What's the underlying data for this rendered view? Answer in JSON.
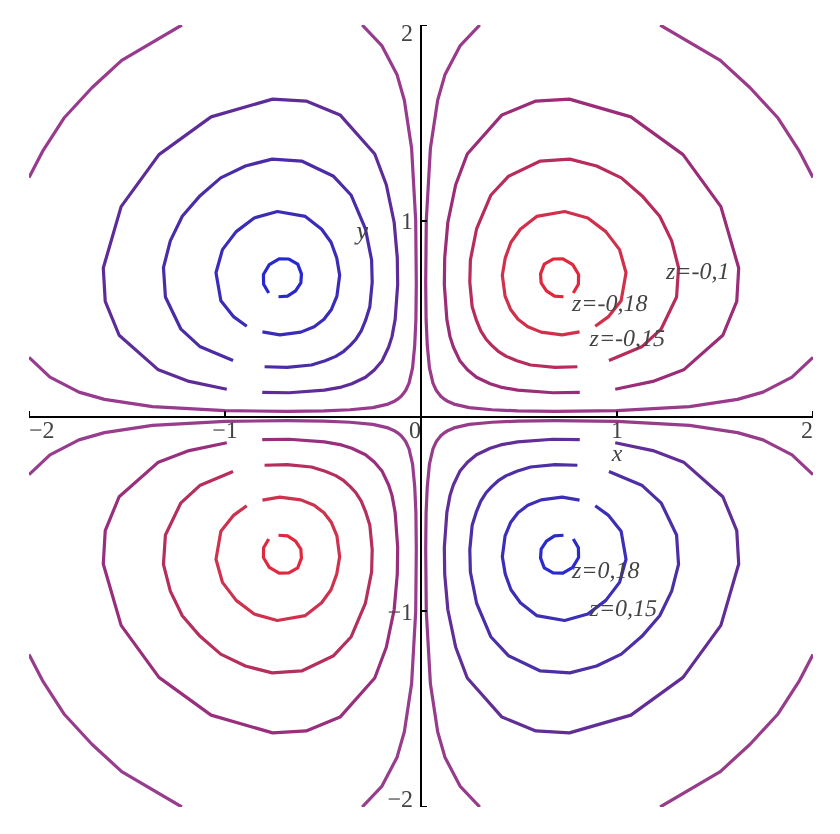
{
  "chart_data": {
    "type": "line",
    "xlabel": "x",
    "ylabel": "y",
    "xlim": [
      -2,
      2
    ],
    "ylim": [
      -2,
      2
    ],
    "xticks": [
      -2,
      -1,
      0,
      1,
      2
    ],
    "yticks": [
      -2,
      -1,
      1,
      2
    ],
    "grid": false,
    "marker": "none",
    "line_style": "solid",
    "annotations": [
      "z=-0,1",
      "z=-0,18",
      "z=-0,15",
      "z=0,18",
      "z=0,15"
    ],
    "series": [
      {
        "color": "#e0283c",
        "x": [
          0.777,
          0.803,
          0.804,
          0.774,
          0.724,
          0.674,
          0.629,
          0.61,
          0.613,
          0.64,
          0.681,
          0.727
        ],
        "values": [
          0.629,
          0.674,
          0.724,
          0.774,
          0.804,
          0.803,
          0.777,
          0.727,
          0.681,
          0.64,
          0.613,
          0.61
        ]
      },
      {
        "color": "#d0304a",
        "x": [
          0.889,
          0.955,
          1.021,
          1.046,
          1.013,
          0.943,
          0.851,
          0.733,
          0.59,
          0.507,
          0.459,
          0.43,
          0.415,
          0.429,
          0.457,
          0.495,
          0.545,
          0.613,
          0.72,
          0.809
        ],
        "values": [
          0.459,
          0.507,
          0.59,
          0.733,
          0.851,
          0.943,
          1.013,
          1.046,
          1.021,
          0.955,
          0.889,
          0.809,
          0.72,
          0.613,
          0.545,
          0.495,
          0.457,
          0.429,
          0.415,
          0.43
        ]
      },
      {
        "color": "#b82c5a",
        "x": [
          0.959,
          1.129,
          1.226,
          1.304,
          1.314,
          1.279,
          1.218,
          1.127,
          1.022,
          0.896,
          0.759,
          0.609,
          0.446,
          0.356,
          0.284,
          0.252,
          0.249,
          0.261,
          0.283,
          0.305,
          0.331,
          0.361,
          0.394,
          0.435,
          0.489,
          0.559,
          0.684,
          0.798
        ],
        "values": [
          0.284,
          0.356,
          0.446,
          0.609,
          0.759,
          0.896,
          1.022,
          1.127,
          1.218,
          1.279,
          1.314,
          1.304,
          1.226,
          1.129,
          0.959,
          0.798,
          0.684,
          0.559,
          0.489,
          0.435,
          0.394,
          0.361,
          0.331,
          0.305,
          0.283,
          0.261,
          0.249,
          0.252
        ]
      },
      {
        "color": "#9a2c78",
        "x": [
          0.991,
          1.183,
          1.34,
          1.54,
          1.611,
          1.621,
          1.53,
          1.337,
          1.071,
          0.757,
          0.586,
          0.413,
          0.236,
          0.177,
          0.137,
          0.121,
          0.119,
          0.132,
          0.148,
          0.165,
          0.198,
          0.237,
          0.283,
          0.353,
          0.406,
          0.493,
          0.672,
          0.81
        ],
        "values": [
          0.137,
          0.177,
          0.236,
          0.413,
          0.586,
          0.757,
          1.071,
          1.337,
          1.53,
          1.621,
          1.611,
          1.54,
          1.34,
          1.183,
          0.991,
          0.81,
          0.672,
          0.493,
          0.406,
          0.353,
          0.283,
          0.237,
          0.198,
          0.165,
          0.148,
          0.132,
          0.119,
          0.121
        ]
      },
      {
        "color": "#9a3a8a",
        "x": [
          2.0,
          1.893,
          1.745,
          1.615,
          1.37,
          1.0,
          0.682,
          0.494,
          0.362,
          0.246,
          0.168,
          0.133,
          0.121,
          0.101,
          0.085,
          0.077,
          0.061,
          0.043,
          0.032,
          0.026,
          0.024,
          0.027,
          0.048,
          0.085,
          0.122,
          0.199,
          0.3,
          null,
          1.22,
          1.527,
          1.679,
          1.819,
          1.931,
          2.0
        ],
        "values": [
          0.3,
          0.199,
          0.122,
          0.085,
          0.048,
          0.027,
          0.024,
          0.026,
          0.032,
          0.043,
          0.061,
          0.077,
          0.085,
          0.101,
          0.121,
          0.133,
          0.168,
          0.246,
          0.362,
          0.494,
          0.682,
          1.0,
          1.37,
          1.615,
          1.745,
          1.893,
          2.0,
          null,
          2.0,
          1.819,
          1.679,
          1.527,
          1.353,
          1.22
        ]
      },
      {
        "color": "#2828d0",
        "x": [
          -0.777,
          -0.803,
          -0.804,
          -0.774,
          -0.724,
          -0.674,
          -0.629,
          -0.61,
          -0.613,
          -0.64,
          -0.681,
          -0.727
        ],
        "values": [
          0.629,
          0.674,
          0.724,
          0.774,
          0.804,
          0.803,
          0.777,
          0.727,
          0.681,
          0.64,
          0.613,
          0.61
        ]
      },
      {
        "color": "#3a2cb8",
        "x": [
          -0.889,
          -0.955,
          -1.021,
          -1.046,
          -1.013,
          -0.943,
          -0.851,
          -0.733,
          -0.59,
          -0.507,
          -0.459,
          -0.43,
          -0.415,
          -0.429,
          -0.457,
          -0.495,
          -0.545,
          -0.613,
          -0.72,
          -0.809
        ],
        "values": [
          0.459,
          0.507,
          0.59,
          0.733,
          0.851,
          0.943,
          1.013,
          1.046,
          1.021,
          0.955,
          0.889,
          0.809,
          0.72,
          0.613,
          0.545,
          0.495,
          0.457,
          0.429,
          0.415,
          0.43
        ]
      },
      {
        "color": "#4a2ca8",
        "x": [
          -0.959,
          -1.129,
          -1.226,
          -1.304,
          -1.314,
          -1.279,
          -1.218,
          -1.127,
          -1.022,
          -0.896,
          -0.759,
          -0.609,
          -0.446,
          -0.356,
          -0.284,
          -0.252,
          -0.249,
          -0.261,
          -0.283,
          -0.305,
          -0.331,
          -0.361,
          -0.394,
          -0.435,
          -0.489,
          -0.559,
          -0.684,
          -0.798
        ],
        "values": [
          0.284,
          0.356,
          0.446,
          0.609,
          0.759,
          0.896,
          1.022,
          1.127,
          1.218,
          1.279,
          1.314,
          1.304,
          1.226,
          1.129,
          0.959,
          0.798,
          0.684,
          0.559,
          0.489,
          0.435,
          0.394,
          0.361,
          0.331,
          0.305,
          0.283,
          0.261,
          0.249,
          0.252
        ]
      },
      {
        "color": "#5e2c98",
        "x": [
          -0.991,
          -1.183,
          -1.34,
          -1.54,
          -1.611,
          -1.621,
          -1.53,
          -1.337,
          -1.071,
          -0.757,
          -0.586,
          -0.413,
          -0.236,
          -0.177,
          -0.137,
          -0.121,
          -0.119,
          -0.132,
          -0.148,
          -0.165,
          -0.198,
          -0.237,
          -0.283,
          -0.353,
          -0.406,
          -0.493,
          -0.672,
          -0.81
        ],
        "values": [
          0.137,
          0.177,
          0.236,
          0.413,
          0.586,
          0.757,
          1.071,
          1.337,
          1.53,
          1.621,
          1.611,
          1.54,
          1.34,
          1.183,
          0.991,
          0.81,
          0.672,
          0.493,
          0.406,
          0.353,
          0.283,
          0.237,
          0.198,
          0.165,
          0.148,
          0.132,
          0.119,
          0.121
        ]
      },
      {
        "color": "#983a8e",
        "x": [
          -2.0,
          -1.893,
          -1.745,
          -1.615,
          -1.37,
          -1.0,
          -0.682,
          -0.494,
          -0.362,
          -0.246,
          -0.168,
          -0.133,
          -0.121,
          -0.101,
          -0.085,
          -0.077,
          -0.061,
          -0.043,
          -0.032,
          -0.026,
          -0.024,
          -0.027,
          -0.048,
          -0.085,
          -0.122,
          -0.199,
          -0.3,
          null,
          -1.22,
          -1.527,
          -1.679,
          -1.819,
          -1.931,
          -2.0
        ],
        "values": [
          0.3,
          0.199,
          0.122,
          0.085,
          0.048,
          0.027,
          0.024,
          0.026,
          0.032,
          0.043,
          0.061,
          0.077,
          0.085,
          0.101,
          0.121,
          0.133,
          0.168,
          0.246,
          0.362,
          0.494,
          0.682,
          1.0,
          1.37,
          1.615,
          1.745,
          1.893,
          2.0,
          null,
          2.0,
          1.819,
          1.679,
          1.527,
          1.353,
          1.22
        ]
      },
      {
        "color": "#de2a40",
        "x": [
          -0.777,
          -0.803,
          -0.804,
          -0.774,
          -0.724,
          -0.674,
          -0.629,
          -0.61,
          -0.613,
          -0.64,
          -0.681,
          -0.727
        ],
        "values": [
          -0.629,
          -0.674,
          -0.724,
          -0.774,
          -0.804,
          -0.803,
          -0.777,
          -0.727,
          -0.681,
          -0.64,
          -0.613,
          -0.61
        ]
      },
      {
        "color": "#ce324e",
        "x": [
          -0.889,
          -0.955,
          -1.021,
          -1.046,
          -1.013,
          -0.943,
          -0.851,
          -0.733,
          -0.59,
          -0.507,
          -0.459,
          -0.43,
          -0.415,
          -0.429,
          -0.457,
          -0.495,
          -0.545,
          -0.613,
          -0.72,
          -0.809
        ],
        "values": [
          -0.459,
          -0.507,
          -0.59,
          -0.733,
          -0.851,
          -0.943,
          -1.013,
          -1.046,
          -1.021,
          -0.955,
          -0.889,
          -0.809,
          -0.72,
          -0.613,
          -0.545,
          -0.495,
          -0.457,
          -0.429,
          -0.415,
          -0.43
        ]
      },
      {
        "color": "#b62e5e",
        "x": [
          -0.959,
          -1.129,
          -1.226,
          -1.304,
          -1.314,
          -1.279,
          -1.218,
          -1.127,
          -1.022,
          -0.896,
          -0.759,
          -0.609,
          -0.446,
          -0.356,
          -0.284,
          -0.252,
          -0.249,
          -0.261,
          -0.283,
          -0.305,
          -0.331,
          -0.361,
          -0.394,
          -0.435,
          -0.489,
          -0.559,
          -0.684,
          -0.798
        ],
        "values": [
          -0.284,
          -0.356,
          -0.446,
          -0.609,
          -0.759,
          -0.896,
          -1.022,
          -1.127,
          -1.218,
          -1.279,
          -1.314,
          -1.304,
          -1.226,
          -1.129,
          -0.959,
          -0.798,
          -0.684,
          -0.559,
          -0.489,
          -0.435,
          -0.394,
          -0.361,
          -0.331,
          -0.305,
          -0.283,
          -0.261,
          -0.249,
          -0.252
        ]
      },
      {
        "color": "#982e7c",
        "x": [
          -0.991,
          -1.183,
          -1.34,
          -1.54,
          -1.611,
          -1.621,
          -1.53,
          -1.337,
          -1.071,
          -0.757,
          -0.586,
          -0.413,
          -0.236,
          -0.177,
          -0.137,
          -0.121,
          -0.119,
          -0.132,
          -0.148,
          -0.165,
          -0.198,
          -0.237,
          -0.283,
          -0.353,
          -0.406,
          -0.493,
          -0.672,
          -0.81
        ],
        "values": [
          -0.137,
          -0.177,
          -0.236,
          -0.413,
          -0.586,
          -0.757,
          -1.071,
          -1.337,
          -1.53,
          -1.621,
          -1.611,
          -1.54,
          -1.34,
          -1.183,
          -0.991,
          -0.81,
          -0.672,
          -0.493,
          -0.406,
          -0.353,
          -0.283,
          -0.237,
          -0.198,
          -0.165,
          -0.148,
          -0.132,
          -0.119,
          -0.121
        ]
      },
      {
        "color": "#983c8e",
        "x": [
          -2.0,
          -1.893,
          -1.745,
          -1.615,
          -1.37,
          -1.0,
          -0.682,
          -0.494,
          -0.362,
          -0.246,
          -0.168,
          -0.133,
          -0.121,
          -0.101,
          -0.085,
          -0.077,
          -0.061,
          -0.043,
          -0.032,
          -0.026,
          -0.024,
          -0.027,
          -0.048,
          -0.085,
          -0.122,
          -0.199,
          -0.3,
          null,
          -1.22,
          -1.527,
          -1.679,
          -1.819,
          -1.931,
          -2.0
        ],
        "values": [
          -0.3,
          -0.199,
          -0.122,
          -0.085,
          -0.048,
          -0.027,
          -0.024,
          -0.026,
          -0.032,
          -0.043,
          -0.061,
          -0.077,
          -0.085,
          -0.101,
          -0.121,
          -0.133,
          -0.168,
          -0.246,
          -0.362,
          -0.494,
          -0.682,
          -1.0,
          -1.37,
          -1.615,
          -1.745,
          -1.893,
          -2.0,
          null,
          -2.0,
          -1.819,
          -1.679,
          -1.527,
          -1.353,
          -1.22
        ]
      },
      {
        "color": "#2a2ace",
        "x": [
          0.777,
          0.803,
          0.804,
          0.774,
          0.724,
          0.674,
          0.629,
          0.61,
          0.613,
          0.64,
          0.681,
          0.727
        ],
        "values": [
          -0.629,
          -0.674,
          -0.724,
          -0.774,
          -0.804,
          -0.803,
          -0.777,
          -0.727,
          -0.681,
          -0.64,
          -0.613,
          -0.61
        ]
      },
      {
        "color": "#3c2eb6",
        "x": [
          0.889,
          0.955,
          1.021,
          1.046,
          1.013,
          0.943,
          0.851,
          0.733,
          0.59,
          0.507,
          0.459,
          0.43,
          0.415,
          0.429,
          0.457,
          0.495,
          0.545,
          0.613,
          0.72,
          0.809
        ],
        "values": [
          -0.459,
          -0.507,
          -0.59,
          -0.733,
          -0.851,
          -0.943,
          -1.013,
          -1.046,
          -1.021,
          -0.955,
          -0.889,
          -0.809,
          -0.72,
          -0.613,
          -0.545,
          -0.495,
          -0.457,
          -0.429,
          -0.415,
          -0.43
        ]
      },
      {
        "color": "#4c2ea6",
        "x": [
          0.959,
          1.129,
          1.226,
          1.304,
          1.314,
          1.279,
          1.218,
          1.127,
          1.022,
          0.896,
          0.759,
          0.609,
          0.446,
          0.356,
          0.284,
          0.252,
          0.249,
          0.261,
          0.283,
          0.305,
          0.331,
          0.361,
          0.394,
          0.435,
          0.489,
          0.559,
          0.684,
          0.798
        ],
        "values": [
          -0.284,
          -0.356,
          -0.446,
          -0.609,
          -0.759,
          -0.896,
          -1.022,
          -1.127,
          -1.218,
          -1.279,
          -1.314,
          -1.304,
          -1.226,
          -1.129,
          -0.959,
          -0.798,
          -0.684,
          -0.559,
          -0.489,
          -0.435,
          -0.394,
          -0.361,
          -0.331,
          -0.305,
          -0.283,
          -0.261,
          -0.249,
          -0.252
        ]
      },
      {
        "color": "#602e96",
        "x": [
          0.991,
          1.183,
          1.34,
          1.54,
          1.611,
          1.621,
          1.53,
          1.337,
          1.071,
          0.757,
          0.586,
          0.413,
          0.236,
          0.177,
          0.137,
          0.121,
          0.119,
          0.132,
          0.148,
          0.165,
          0.198,
          0.237,
          0.283,
          0.353,
          0.406,
          0.493,
          0.672,
          0.81
        ],
        "values": [
          -0.137,
          -0.177,
          -0.236,
          -0.413,
          -0.586,
          -0.757,
          -1.071,
          -1.337,
          -1.53,
          -1.621,
          -1.611,
          -1.54,
          -1.34,
          -1.183,
          -0.991,
          -0.81,
          -0.672,
          -0.493,
          -0.406,
          -0.353,
          -0.283,
          -0.237,
          -0.198,
          -0.165,
          -0.148,
          -0.132,
          -0.119,
          -0.121
        ]
      },
      {
        "color": "#963c8a",
        "x": [
          2.0,
          1.893,
          1.745,
          1.615,
          1.37,
          1.0,
          0.682,
          0.494,
          0.362,
          0.246,
          0.168,
          0.133,
          0.121,
          0.101,
          0.085,
          0.077,
          0.061,
          0.043,
          0.032,
          0.026,
          0.024,
          0.027,
          0.048,
          0.085,
          0.122,
          0.199,
          0.3,
          null,
          1.22,
          1.527,
          1.679,
          1.819,
          1.931,
          2.0
        ],
        "values": [
          -0.3,
          -0.199,
          -0.122,
          -0.085,
          -0.048,
          -0.027,
          -0.024,
          -0.026,
          -0.032,
          -0.043,
          -0.061,
          -0.077,
          -0.085,
          -0.101,
          -0.121,
          -0.133,
          -0.168,
          -0.246,
          -0.362,
          -0.494,
          -0.682,
          -1.0,
          -1.37,
          -1.615,
          -1.745,
          -1.893,
          -2.0,
          null,
          -2.0,
          -1.819,
          -1.679,
          -1.527,
          -1.353,
          -1.22
        ]
      }
    ]
  }
}
